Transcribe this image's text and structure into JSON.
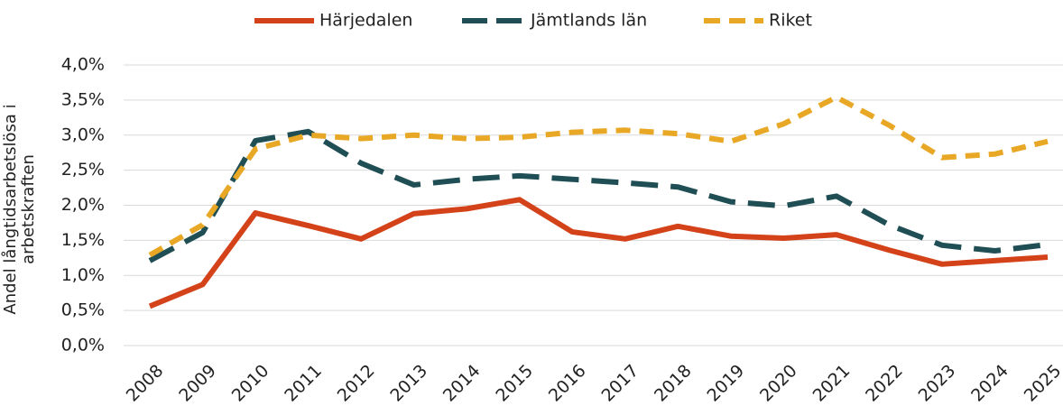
{
  "chart_data": {
    "type": "line",
    "y_label": "Andel långtidsarbetslösa i arbetskraften",
    "categories": [
      "2008",
      "2009",
      "2010",
      "2011",
      "2012",
      "2013",
      "2014",
      "2015",
      "2016",
      "2017",
      "2018",
      "2019",
      "2020",
      "2021",
      "2022",
      "2023",
      "2024",
      "2025"
    ],
    "series": [
      {
        "name": "Härjedalen",
        "color": "#d4421a",
        "dash": "solid",
        "values": [
          0.56,
          0.87,
          1.89,
          1.71,
          1.52,
          1.88,
          1.95,
          2.08,
          1.62,
          1.52,
          1.7,
          1.56,
          1.53,
          1.58,
          1.36,
          1.16,
          1.21,
          1.26
        ]
      },
      {
        "name": "Jämtlands län",
        "color": "#1f4e55",
        "dash": "long",
        "values": [
          1.21,
          1.61,
          2.92,
          3.05,
          2.6,
          2.29,
          2.37,
          2.42,
          2.37,
          2.32,
          2.26,
          2.05,
          1.99,
          2.13,
          1.72,
          1.43,
          1.35,
          1.44
        ]
      },
      {
        "name": "Riket",
        "color": "#e8a825",
        "dash": "short",
        "values": [
          1.29,
          1.72,
          2.8,
          3.0,
          2.95,
          3.0,
          2.95,
          2.97,
          3.04,
          3.07,
          3.02,
          2.91,
          3.16,
          3.54,
          3.14,
          2.68,
          2.73,
          2.91
        ]
      }
    ],
    "ylim": [
      0,
      4
    ],
    "yticks": [
      {
        "value": 0,
        "label": "0,0%"
      },
      {
        "value": 0.5,
        "label": "0,5%"
      },
      {
        "value": 1,
        "label": "1,0%"
      },
      {
        "value": 1.5,
        "label": "1,5%"
      },
      {
        "value": 2,
        "label": "2,0%"
      },
      {
        "value": 2.5,
        "label": "2,5%"
      },
      {
        "value": 3,
        "label": "3,0%"
      },
      {
        "value": 3.5,
        "label": "3,5%"
      },
      {
        "value": 4,
        "label": "4,0%"
      }
    ],
    "grid": true,
    "legend": "top"
  }
}
